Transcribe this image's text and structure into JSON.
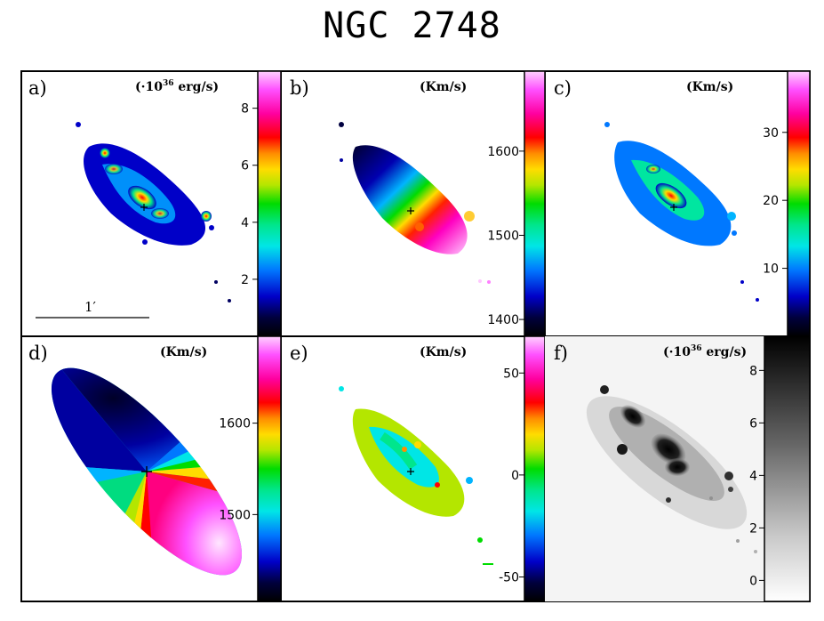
{
  "title": "NGC 2748",
  "panels": [
    {
      "id": "a",
      "label": "a)",
      "unit_prefix": "(·10",
      "unit_exp": "36",
      "unit_suffix": " erg/s)",
      "ticks": [
        "8",
        "6",
        "4",
        "2"
      ],
      "tick_values": [
        8,
        6,
        4,
        2
      ],
      "range": [
        0,
        9.3
      ],
      "colormap": "rainbow",
      "scale_label": "1′"
    },
    {
      "id": "b",
      "label": "b)",
      "unit": "(Km/s)",
      "ticks": [
        "1600",
        "1500",
        "1400"
      ],
      "tick_values": [
        1600,
        1500,
        1400
      ],
      "range": [
        1380,
        1695
      ],
      "colormap": "rainbow"
    },
    {
      "id": "c",
      "label": "c)",
      "unit": "(Km/s)",
      "ticks": [
        "30",
        "20",
        "10"
      ],
      "tick_values": [
        30,
        20,
        10
      ],
      "range": [
        0,
        39
      ],
      "colormap": "rainbow"
    },
    {
      "id": "d",
      "label": "d)",
      "unit": "(Km/s)",
      "ticks": [
        "1600",
        "1500"
      ],
      "tick_values": [
        1600,
        1500
      ],
      "range": [
        1405,
        1695
      ],
      "colormap": "rainbow"
    },
    {
      "id": "e",
      "label": "e)",
      "unit": "(Km/s)",
      "ticks": [
        "50",
        "0",
        "-50"
      ],
      "tick_values": [
        50,
        0,
        -50
      ],
      "range": [
        -62,
        68
      ],
      "colormap": "rainbow"
    },
    {
      "id": "f",
      "label": "f)",
      "unit_prefix": "(·10",
      "unit_exp": "36",
      "unit_suffix": " erg/s)",
      "ticks": [
        "8",
        "6",
        "4",
        "2",
        "0"
      ],
      "tick_values": [
        8,
        6,
        4,
        2,
        0
      ],
      "range": [
        -0.8,
        9.3
      ],
      "colormap": "grayscale"
    }
  ],
  "colors": {
    "rainbow": [
      "#000000",
      "#00003c",
      "#0000c8",
      "#0078ff",
      "#00e6e6",
      "#00e68c",
      "#00dc00",
      "#b4e600",
      "#ffdc00",
      "#ff8c00",
      "#ff0000",
      "#ff00a0",
      "#ff50ff",
      "#ffd2ff"
    ],
    "grayscale": [
      "#ffffff",
      "#000000"
    ]
  }
}
